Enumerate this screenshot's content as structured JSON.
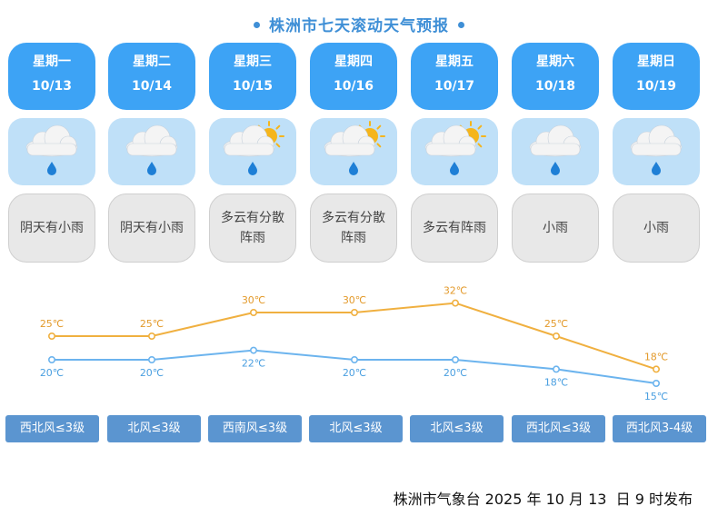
{
  "title": "株洲市七天滚动天气预报",
  "days": [
    {
      "weekday": "星期一",
      "date": "10/13",
      "icon": "cloud-rain-icon",
      "desc": "阴天有小雨",
      "high": "25℃",
      "low": "20℃",
      "wind": "西北风≤3级"
    },
    {
      "weekday": "星期二",
      "date": "10/14",
      "icon": "cloud-rain-icon",
      "desc": "阴天有小雨",
      "high": "25℃",
      "low": "20℃",
      "wind": "北风≤3级"
    },
    {
      "weekday": "星期三",
      "date": "10/15",
      "icon": "partly-cloudy-rain-icon",
      "desc": "多云有分散阵雨",
      "high": "30℃",
      "low": "22℃",
      "wind": "西南风≤3级"
    },
    {
      "weekday": "星期四",
      "date": "10/16",
      "icon": "partly-cloudy-rain-icon",
      "desc": "多云有分散阵雨",
      "high": "30℃",
      "low": "20℃",
      "wind": "北风≤3级"
    },
    {
      "weekday": "星期五",
      "date": "10/17",
      "icon": "partly-cloudy-rain-icon",
      "desc": "多云有阵雨",
      "high": "32℃",
      "low": "20℃",
      "wind": "北风≤3级"
    },
    {
      "weekday": "星期六",
      "date": "10/18",
      "icon": "cloud-rain-icon",
      "desc": "小雨",
      "high": "25℃",
      "low": "18℃",
      "wind": "西北风≤3级"
    },
    {
      "weekday": "星期日",
      "date": "10/19",
      "icon": "cloud-rain-icon",
      "desc": "小雨",
      "high": "18℃",
      "low": "15℃",
      "wind": "西北风3-4级"
    }
  ],
  "chart_data": {
    "type": "line",
    "categories": [
      "10/13",
      "10/14",
      "10/15",
      "10/16",
      "10/17",
      "10/18",
      "10/19"
    ],
    "series": [
      {
        "values": [
          25,
          25,
          30,
          30,
          32,
          25,
          18
        ],
        "color": "#f0b040"
      },
      {
        "values": [
          20,
          20,
          22,
          20,
          20,
          18,
          15
        ],
        "color": "#6cb4ee"
      }
    ],
    "unit": "℃",
    "grid": false
  },
  "footer": "株洲市气象台 2025 年 10 月 13  日 9 时发布"
}
